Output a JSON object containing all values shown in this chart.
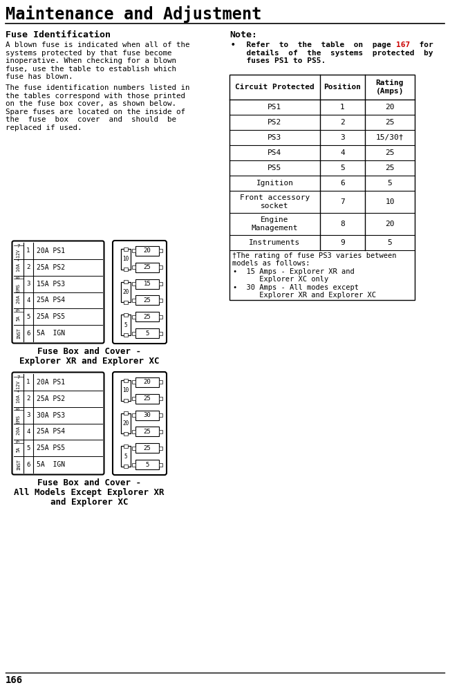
{
  "title": "Maintenance and Adjustment",
  "page_number": "166",
  "left_heading": "Fuse Identification",
  "left_text1_lines": [
    "A blown fuse is indicated when all of the",
    "systems protected by that fuse become",
    "inoperative. When checking for a blown",
    "fuse, use the table to establish which",
    "fuse has blown."
  ],
  "left_text2_lines": [
    "The fuse identification numbers listed in",
    "the tables correspond with those printed",
    "on the fuse box cover, as shown below.",
    "Spare fuses are located on the inside of",
    "the  fuse  box  cover  and  should  be",
    "replaced if used."
  ],
  "right_heading": "Note:",
  "right_bullet_pre": "  Refer  to  the  table  on  page ",
  "right_bullet_ref": "167",
  "right_bullet_post": "  for",
  "right_bullet_line2": "  details  of  the  systems  protected  by",
  "right_bullet_line3": "  fuses PS1 to PS5.",
  "page_ref_color": "#cc0000",
  "table_headers": [
    "Circuit Protected",
    "Position",
    "Rating\n(Amps)"
  ],
  "table_rows": [
    [
      "PS1",
      "1",
      "20"
    ],
    [
      "PS2",
      "2",
      "25"
    ],
    [
      "PS3",
      "3",
      "15/30†"
    ],
    [
      "PS4",
      "4",
      "25"
    ],
    [
      "PS5",
      "5",
      "25"
    ],
    [
      "Ignition",
      "6",
      "5"
    ],
    [
      "Front accessory\nsocket",
      "7",
      "10"
    ],
    [
      "Engine\nManagement",
      "8",
      "20"
    ],
    [
      "Instruments",
      "9",
      "5"
    ]
  ],
  "footnote_line1": "†The rating of fuse PS3 varies between",
  "footnote_line2": "models as follows:",
  "footnote_bullets": [
    [
      "  15 Amps - Explorer XR and",
      "     Explorer XC only"
    ],
    [
      "  30 Amps - All modes except",
      "     Explorer XR and Explorer XC"
    ]
  ],
  "diagram1_caption_lines": [
    "Fuse Box and Cover -",
    "Explorer XR and Explorer XC"
  ],
  "diagram2_caption_lines": [
    "Fuse Box and Cover -",
    "All Models Except Explorer XR",
    "and Explorer XC"
  ],
  "diagram1_box_rows": [
    "20A PS1",
    "25A PS2",
    "15A PS3",
    "25A PS4",
    "25A PS5",
    "5A  IGN"
  ],
  "diagram2_box_rows": [
    "20A PS1",
    "25A PS2",
    "30A PS3",
    "25A PS4",
    "25A PS5",
    "5A  IGN"
  ],
  "diagram_cover_values1": [
    "20",
    "25",
    "15",
    "25",
    "25",
    "5"
  ],
  "diagram_cover_values2": [
    "20",
    "25",
    "30",
    "25",
    "25",
    "5"
  ],
  "side_labels": [
    [
      "7",
      "10A +12V",
      "8",
      "20A EMS",
      "9",
      "5A",
      "INST"
    ]
  ],
  "bg_color": "#ffffff",
  "text_color": "#000000",
  "line_color": "#000000"
}
